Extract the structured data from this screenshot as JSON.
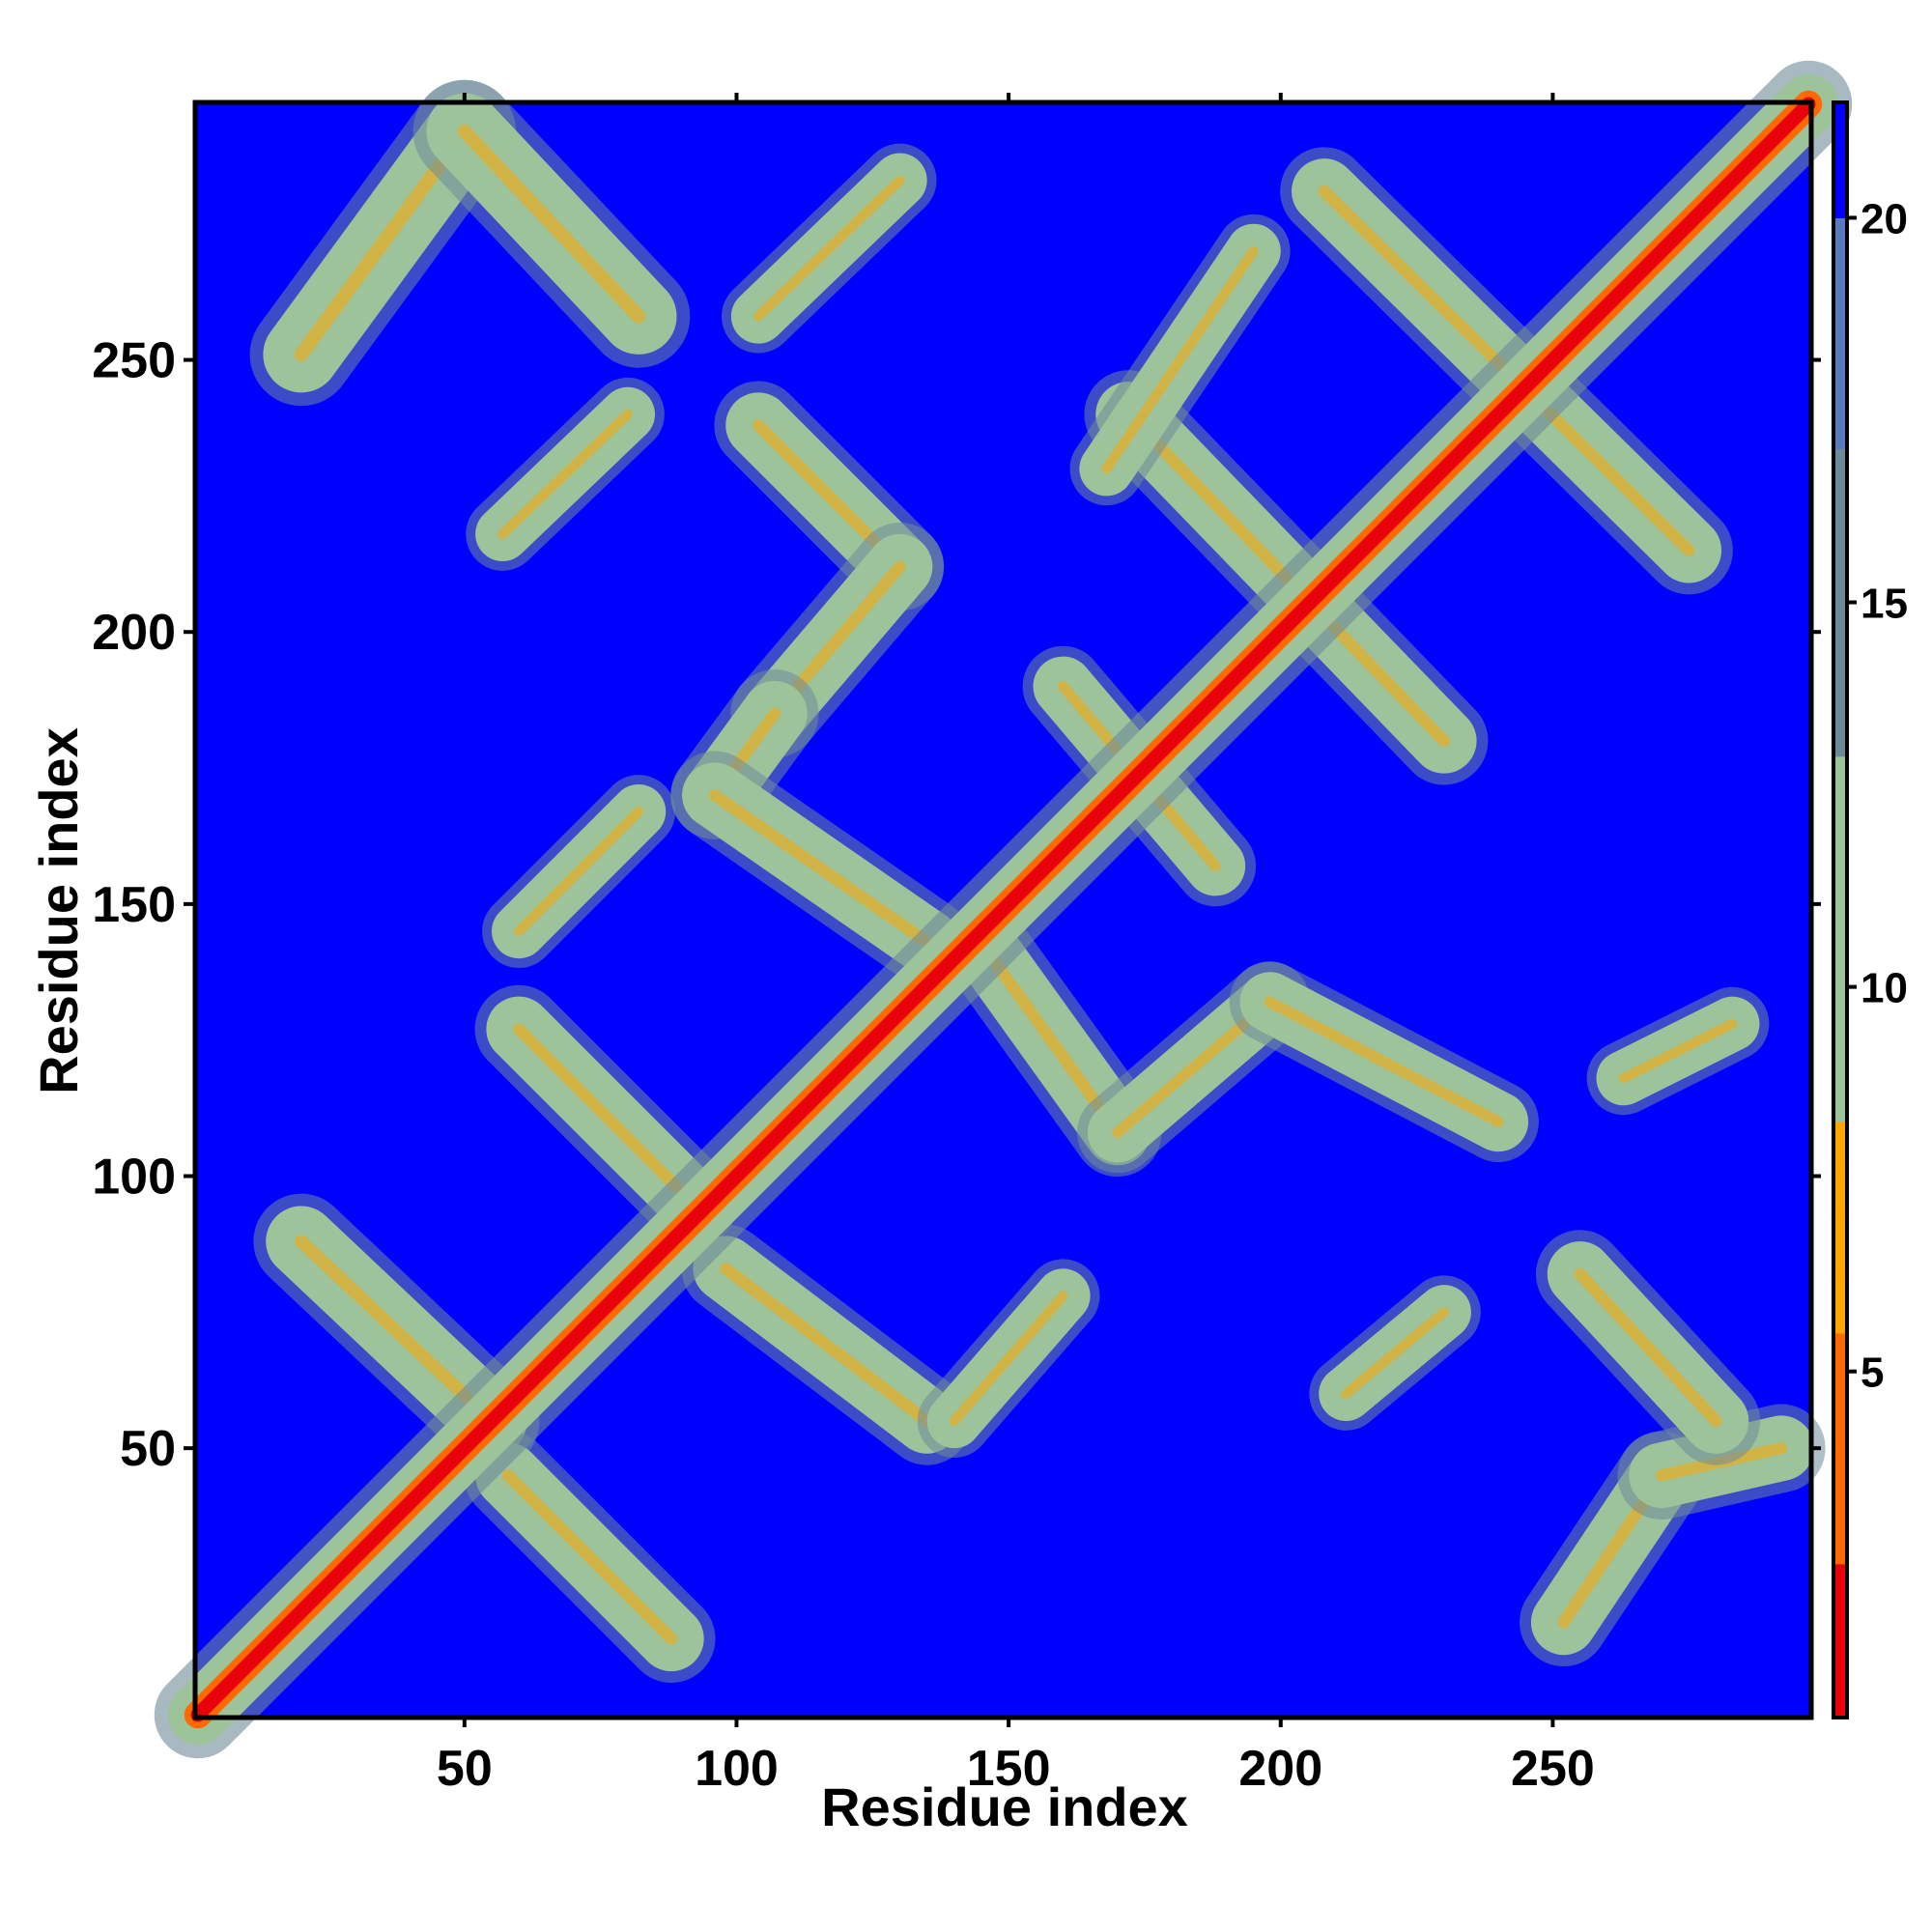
{
  "chart_data": {
    "type": "heatmap",
    "title": "",
    "xlabel": "Residue index",
    "ylabel": "Residue index",
    "xlim": [
      1,
      297
    ],
    "ylim": [
      1,
      297
    ],
    "x_ticks": [
      50,
      100,
      150,
      200,
      250
    ],
    "y_ticks": [
      50,
      100,
      150,
      200,
      250
    ],
    "colorbar": {
      "ticks": [
        5,
        10,
        15,
        20
      ],
      "range": [
        0.5,
        21.5
      ],
      "colors": [
        "#e8000b",
        "#ff6a00",
        "#ffa500",
        "#9cc39a",
        "#6e8a9a",
        "#5a7abf",
        "#0000ff"
      ],
      "background_value": 21
    },
    "diagonal_band": {
      "from": 1,
      "to": 297,
      "value": 1.5
    },
    "contact_bands": [
      {
        "from": [
          20,
          251
        ],
        "to": [
          50,
          292
        ],
        "width": 14,
        "value": 10
      },
      {
        "from": [
          50,
          292
        ],
        "to": [
          82,
          258
        ],
        "width": 14,
        "value": 10
      },
      {
        "from": [
          104,
          258
        ],
        "to": [
          130,
          283
        ],
        "width": 10,
        "value": 13
      },
      {
        "from": [
          57,
          218
        ],
        "to": [
          80,
          240
        ],
        "width": 10,
        "value": 12
      },
      {
        "from": [
          104,
          238
        ],
        "to": [
          130,
          212
        ],
        "width": 12,
        "value": 10
      },
      {
        "from": [
          130,
          212
        ],
        "to": [
          107,
          185
        ],
        "width": 12,
        "value": 10
      },
      {
        "from": [
          107,
          185
        ],
        "to": [
          96,
          170
        ],
        "width": 12,
        "value": 10
      },
      {
        "from": [
          96,
          170
        ],
        "to": [
          135,
          143
        ],
        "width": 12,
        "value": 10
      },
      {
        "from": [
          60,
          145
        ],
        "to": [
          82,
          167
        ],
        "width": 10,
        "value": 11
      },
      {
        "from": [
          60,
          127
        ],
        "to": [
          92,
          95
        ],
        "width": 12,
        "value": 9
      },
      {
        "from": [
          20,
          88
        ],
        "to": [
          55,
          55
        ],
        "width": 13,
        "value": 9
      },
      {
        "from": [
          58,
          45
        ],
        "to": [
          88,
          15
        ],
        "width": 12,
        "value": 10
      },
      {
        "from": [
          98,
          83
        ],
        "to": [
          135,
          55
        ],
        "width": 12,
        "value": 9
      },
      {
        "from": [
          140,
          55
        ],
        "to": [
          160,
          78
        ],
        "width": 10,
        "value": 11
      },
      {
        "from": [
          147,
          140
        ],
        "to": [
          170,
          108
        ],
        "width": 12,
        "value": 9
      },
      {
        "from": [
          170,
          108
        ],
        "to": [
          198,
          132
        ],
        "width": 11,
        "value": 10
      },
      {
        "from": [
          198,
          132
        ],
        "to": [
          240,
          110
        ],
        "width": 11,
        "value": 10
      },
      {
        "from": [
          160,
          190
        ],
        "to": [
          188,
          157
        ],
        "width": 11,
        "value": 12
      },
      {
        "from": [
          172,
          240
        ],
        "to": [
          230,
          180
        ],
        "width": 12,
        "value": 10
      },
      {
        "from": [
          208,
          281
        ],
        "to": [
          275,
          215
        ],
        "width": 12,
        "value": 10
      },
      {
        "from": [
          263,
          118
        ],
        "to": [
          283,
          128
        ],
        "width": 10,
        "value": 12
      },
      {
        "from": [
          212,
          60
        ],
        "to": [
          230,
          75
        ],
        "width": 10,
        "value": 12
      },
      {
        "from": [
          252,
          18
        ],
        "to": [
          270,
          45
        ],
        "width": 12,
        "value": 10
      },
      {
        "from": [
          270,
          45
        ],
        "to": [
          292,
          50
        ],
        "width": 12,
        "value": 10
      },
      {
        "from": [
          255,
          82
        ],
        "to": [
          280,
          55
        ],
        "width": 12,
        "value": 10
      },
      {
        "from": [
          168,
          230
        ],
        "to": [
          195,
          270
        ],
        "width": 10,
        "value": 13
      }
    ]
  }
}
